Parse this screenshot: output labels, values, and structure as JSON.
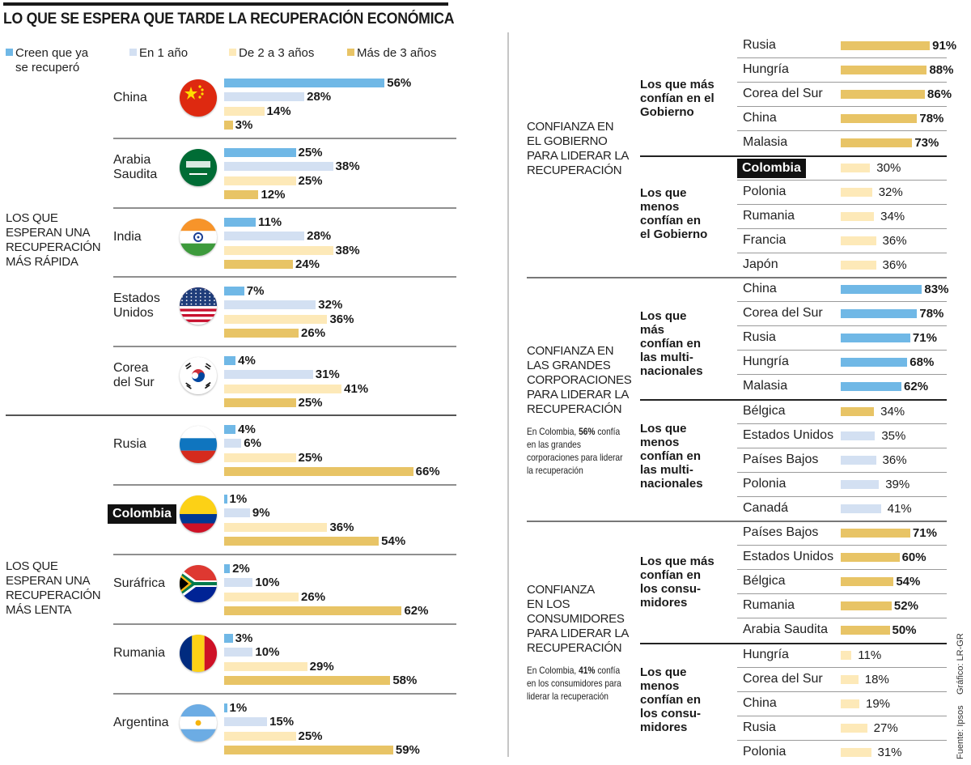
{
  "title": "LO QUE SE ESPERA QUE TARDE LA RECUPERACIÓN ECONÓMICA",
  "colors": {
    "recovered": "#70b8e6",
    "one_year": "#d3e0f2",
    "two_three": "#fde9b8",
    "more_three": "#e8c466",
    "dark": "#111111"
  },
  "legend": [
    {
      "label": "Creen que ya se recuperó",
      "line1": "Creen que ya",
      "line2": "se recuperó",
      "key": "recovered"
    },
    {
      "label": "En 1 año",
      "key": "one_year"
    },
    {
      "label": "De 2 a 3 años",
      "key": "two_three"
    },
    {
      "label": "Más de 3 años",
      "key": "more_three"
    }
  ],
  "groups": [
    {
      "label_lines": [
        "LOS QUE",
        "ESPERAN UNA",
        "RECUPERACIÓN",
        "MÁS RÁPIDA"
      ]
    },
    {
      "label_lines": [
        "LOS QUE",
        "ESPERAN UNA",
        "RECUPERACIÓN",
        "MÁS LENTA"
      ]
    }
  ],
  "chart_data": [
    {
      "type": "bar",
      "orientation": "horizontal",
      "title": "LO QUE SE ESPERA QUE TARDE LA RECUPERACIÓN ECONÓMICA",
      "series_names": [
        "Creen que ya se recuperó",
        "En 1 año",
        "De 2 a 3 años",
        "Más de 3 años"
      ],
      "unit": "%",
      "categories": [
        {
          "country": "China",
          "lines": [
            "China"
          ],
          "group": 0,
          "flag": "china-flag-icon",
          "values": [
            56,
            28,
            14,
            3
          ]
        },
        {
          "country": "Arabia Saudita",
          "lines": [
            "Arabia",
            "Saudita"
          ],
          "group": 0,
          "flag": "saudi-arabia-flag-icon",
          "values": [
            25,
            38,
            25,
            12
          ]
        },
        {
          "country": "India",
          "lines": [
            "India"
          ],
          "group": 0,
          "flag": "india-flag-icon",
          "values": [
            11,
            28,
            38,
            24
          ]
        },
        {
          "country": "Estados Unidos",
          "lines": [
            "Estados",
            "Unidos"
          ],
          "group": 0,
          "flag": "usa-flag-icon",
          "values": [
            7,
            32,
            36,
            26
          ]
        },
        {
          "country": "Corea del Sur",
          "lines": [
            "Corea",
            "del Sur"
          ],
          "group": 0,
          "flag": "south-korea-flag-icon",
          "values": [
            4,
            31,
            41,
            25
          ]
        },
        {
          "country": "Rusia",
          "lines": [
            "Rusia"
          ],
          "group": 1,
          "flag": "russia-flag-icon",
          "values": [
            4,
            6,
            25,
            66
          ]
        },
        {
          "country": "Colombia",
          "lines": [
            "Colombia"
          ],
          "group": 1,
          "flag": "colombia-flag-icon",
          "highlight": true,
          "values": [
            1,
            9,
            36,
            54
          ]
        },
        {
          "country": "Suráfrica",
          "lines": [
            "Suráfrica"
          ],
          "group": 1,
          "flag": "south-africa-flag-icon",
          "values": [
            2,
            10,
            26,
            62
          ]
        },
        {
          "country": "Rumania",
          "lines": [
            "Rumania"
          ],
          "group": 1,
          "flag": "romania-flag-icon",
          "values": [
            3,
            10,
            29,
            58
          ]
        },
        {
          "country": "Argentina",
          "lines": [
            "Argentina"
          ],
          "group": 1,
          "flag": "argentina-flag-icon",
          "values": [
            1,
            15,
            25,
            59
          ]
        }
      ]
    },
    {
      "type": "bar",
      "orientation": "horizontal",
      "title": "CONFIANZA EN EL GOBIERNO PARA LIDERAR LA RECUPERACIÓN",
      "unit": "%",
      "subgroups": [
        {
          "label": "Los que más confían en el Gobierno",
          "items": [
            {
              "country": "Rusia",
              "value": 91
            },
            {
              "country": "Hungría",
              "value": 88
            },
            {
              "country": "Corea del Sur",
              "value": 86
            },
            {
              "country": "China",
              "value": 78
            },
            {
              "country": "Malasia",
              "value": 73
            }
          ]
        },
        {
          "label": "Los que menos confían en el Gobierno",
          "items": [
            {
              "country": "Colombia",
              "value": 30,
              "highlight": true
            },
            {
              "country": "Polonia",
              "value": 32
            },
            {
              "country": "Rumania",
              "value": 34
            },
            {
              "country": "Francia",
              "value": 36
            },
            {
              "country": "Japón",
              "value": 36
            }
          ]
        }
      ]
    },
    {
      "type": "bar",
      "orientation": "horizontal",
      "title": "CONFIANZA EN LAS GRANDES CORPORACIONES PARA LIDERAR LA RECUPERACIÓN",
      "unit": "%",
      "subgroups": [
        {
          "label": "Los que más confían en las multinacionales",
          "items": [
            {
              "country": "China",
              "value": 83
            },
            {
              "country": "Corea del Sur",
              "value": 78
            },
            {
              "country": "Rusia",
              "value": 71
            },
            {
              "country": "Hungría",
              "value": 68
            },
            {
              "country": "Malasia",
              "value": 62
            }
          ]
        },
        {
          "label": "Los que menos confían en las multinacionales",
          "items": [
            {
              "country": "Bélgica",
              "value": 34
            },
            {
              "country": "Estados Unidos",
              "value": 35
            },
            {
              "country": "Países Bajos",
              "value": 36
            },
            {
              "country": "Polonia",
              "value": 39
            },
            {
              "country": "Canadá",
              "value": 41
            }
          ]
        }
      ]
    },
    {
      "type": "bar",
      "orientation": "horizontal",
      "title": "CONFIANZA EN LOS CONSUMIDORES PARA LIDERAR LA RECUPERACIÓN",
      "unit": "%",
      "subgroups": [
        {
          "label": "Los que más confían en los consumidores",
          "items": [
            {
              "country": "Países Bajos",
              "value": 71
            },
            {
              "country": "Estados Unidos",
              "value": 60
            },
            {
              "country": "Bélgica",
              "value": 54
            },
            {
              "country": "Rumania",
              "value": 52
            },
            {
              "country": "Arabia Saudita",
              "value": 50
            }
          ]
        },
        {
          "label": "Los que menos confían en los consumidores",
          "items": [
            {
              "country": "Hungría",
              "value": 11
            },
            {
              "country": "Corea del Sur",
              "value": 18
            },
            {
              "country": "China",
              "value": 19
            },
            {
              "country": "Rusia",
              "value": 27
            },
            {
              "country": "Polonia",
              "value": 31
            }
          ]
        }
      ]
    }
  ],
  "right_sections": [
    {
      "label_lines": [
        "CONFIANZA EN",
        "EL GOBIERNO",
        "PARA LIDERAR LA",
        "RECUPERACIÓN"
      ],
      "note": null,
      "subgroups": [
        {
          "label_lines": [
            "Los que más",
            "confían en el",
            "Gobierno"
          ],
          "bar_color": "more_three",
          "bold": true
        },
        {
          "label_lines": [
            "Los que",
            "menos",
            "confían en",
            "el Gobierno"
          ],
          "bar_color": "two_three",
          "bold": false
        }
      ]
    },
    {
      "label_lines": [
        "CONFIANZA EN",
        "LAS GRANDES",
        "CORPORACIONES",
        "PARA LIDERAR LA",
        "RECUPERACIÓN"
      ],
      "note": {
        "prefix": "En Colombia, ",
        "value": "56%",
        "suffix": " confía en las grandes corporaciones para liderar la recuperación"
      },
      "subgroups": [
        {
          "label_lines": [
            "Los que",
            "más",
            "confían en",
            "las multi-",
            "nacionales"
          ],
          "bar_color": "recovered",
          "bold": true
        },
        {
          "label_lines": [
            "Los que",
            "menos",
            "confían en",
            "las multi-",
            "nacionales"
          ],
          "bar_color": "one_year",
          "first_bar_color": "more_three",
          "bold": false
        }
      ]
    },
    {
      "label_lines": [
        "CONFIANZA",
        "EN LOS",
        "CONSUMIDORES",
        "PARA LIDERAR LA",
        "RECUPERACIÓN"
      ],
      "note": {
        "prefix": "En Colombia, ",
        "value": "41%",
        "suffix": " confía en los consumidores para liderar la recuperación"
      },
      "subgroups": [
        {
          "label_lines": [
            "Los que más",
            "confían en",
            "los consu-",
            "midores"
          ],
          "bar_color": "more_three",
          "bold": true
        },
        {
          "label_lines": [
            "Los que",
            "menos",
            "confían en",
            "los consu-",
            "midores"
          ],
          "bar_color": "two_three",
          "bold": false
        }
      ]
    }
  ],
  "credits": {
    "source": "Fuente: Ipsos",
    "graphic": "Gráfico: LR-GR"
  }
}
